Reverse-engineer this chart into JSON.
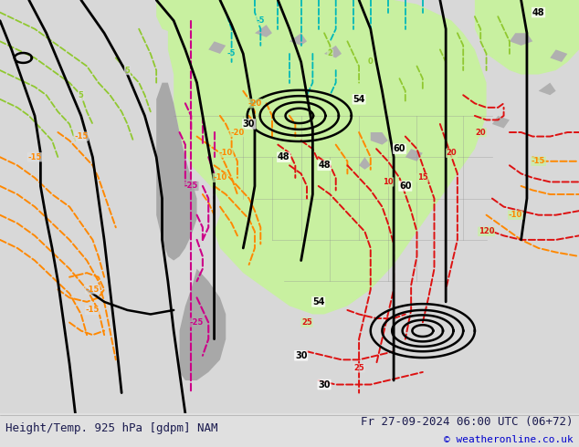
{
  "title_left": "Height/Temp. 925 hPa [gdpm] NAM",
  "title_right": "Fr 27-09-2024 06:00 UTC (06+72)",
  "copyright": "© weatheronline.co.uk",
  "bg_color": "#e0e0e0",
  "green_fill": "#c8f0a0",
  "mountain_color": "#b0b0b0",
  "text_color_dark": "#1a1a4e",
  "footer_font_size": 9,
  "copyright_font_size": 8,
  "fig_width": 6.34,
  "fig_height": 4.9,
  "dpi": 100
}
